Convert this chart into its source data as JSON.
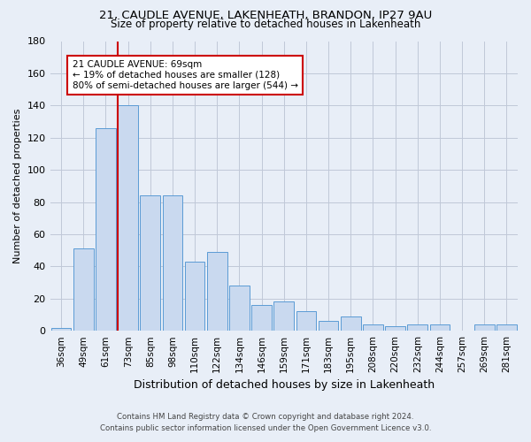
{
  "title1": "21, CAUDLE AVENUE, LAKENHEATH, BRANDON, IP27 9AU",
  "title2": "Size of property relative to detached houses in Lakenheath",
  "xlabel": "Distribution of detached houses by size in Lakenheath",
  "ylabel": "Number of detached properties",
  "categories": [
    "36sqm",
    "49sqm",
    "61sqm",
    "73sqm",
    "85sqm",
    "98sqm",
    "110sqm",
    "122sqm",
    "134sqm",
    "146sqm",
    "159sqm",
    "171sqm",
    "183sqm",
    "195sqm",
    "208sqm",
    "220sqm",
    "232sqm",
    "244sqm",
    "257sqm",
    "269sqm",
    "281sqm"
  ],
  "values": [
    2,
    51,
    126,
    140,
    84,
    84,
    43,
    49,
    28,
    16,
    18,
    12,
    6,
    9,
    4,
    3,
    4,
    4,
    0,
    4,
    4
  ],
  "bar_color": "#c9d9ef",
  "bar_edge_color": "#5b9bd5",
  "marker_color": "#cc0000",
  "annotation_line1": "21 CAUDLE AVENUE: 69sqm",
  "annotation_line2": "← 19% of detached houses are smaller (128)",
  "annotation_line3": "80% of semi-detached houses are larger (544) →",
  "annotation_box_color": "#ffffff",
  "annotation_box_edge": "#cc0000",
  "ylim": [
    0,
    180
  ],
  "yticks": [
    0,
    20,
    40,
    60,
    80,
    100,
    120,
    140,
    160,
    180
  ],
  "grid_color": "#c0c8d8",
  "background_color": "#e8eef7",
  "footer1": "Contains HM Land Registry data © Crown copyright and database right 2024.",
  "footer2": "Contains public sector information licensed under the Open Government Licence v3.0."
}
